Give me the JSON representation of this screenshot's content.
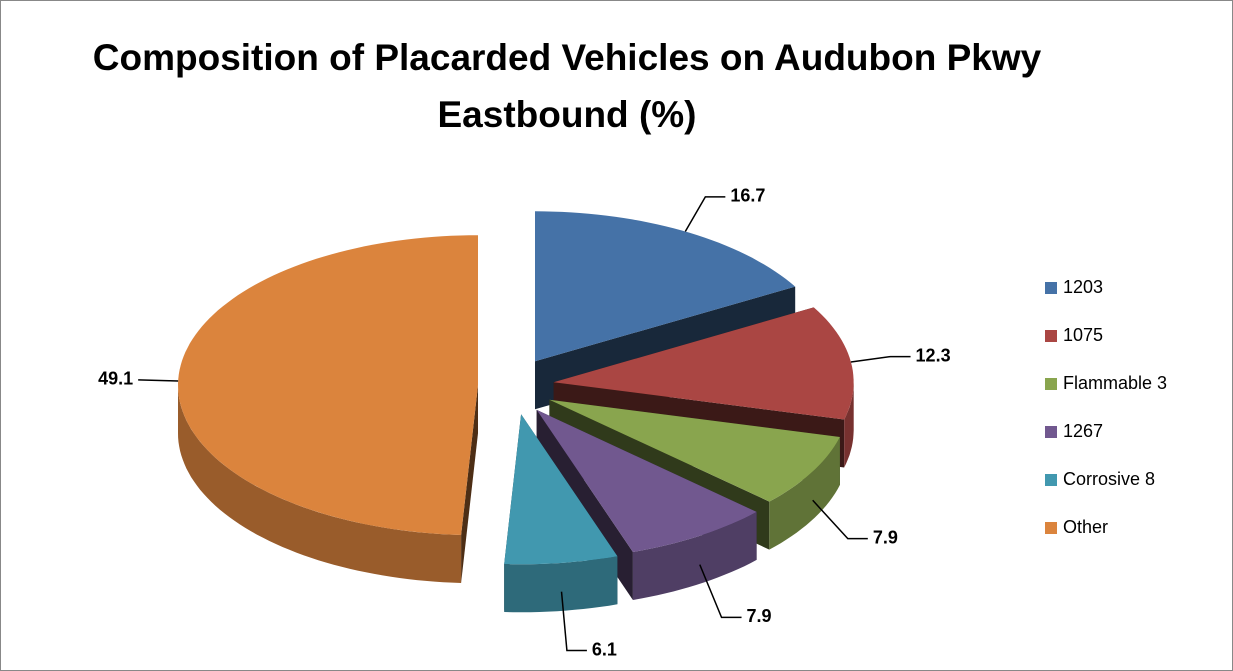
{
  "chart_data": {
    "type": "pie3d",
    "title": "Composition of Placarded Vehicles on Audubon Pkwy Eastbound (%)",
    "categories": [
      "1203",
      "1075",
      "Flammable 3",
      "1267",
      "Corrosive 8",
      "Other"
    ],
    "values": [
      16.7,
      12.3,
      7.9,
      7.9,
      6.1,
      49.1
    ],
    "colors": [
      "#4572a7",
      "#aa4643",
      "#89a54e",
      "#71588f",
      "#4198af",
      "#db843d"
    ],
    "legend": "right"
  }
}
